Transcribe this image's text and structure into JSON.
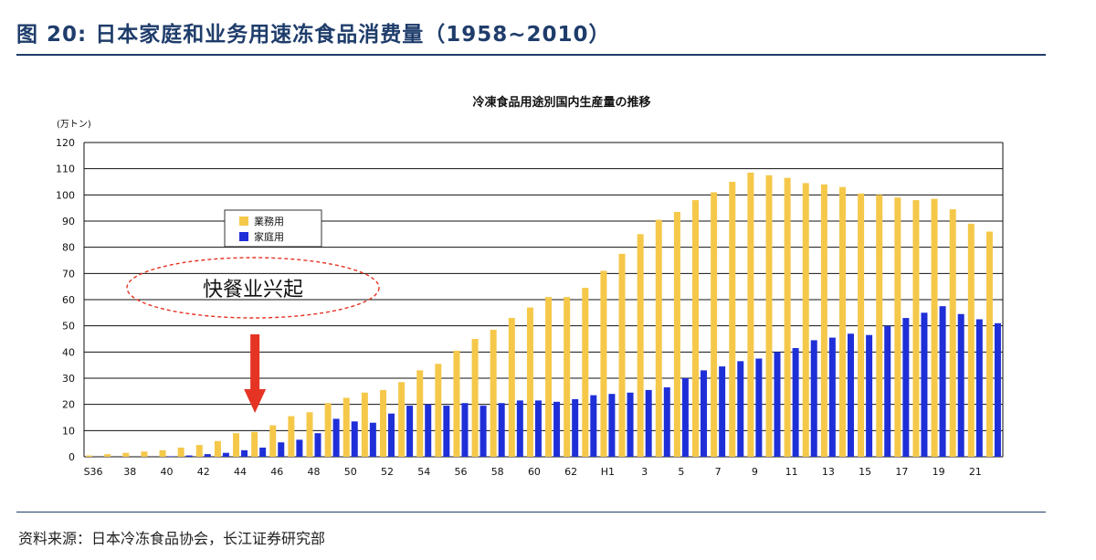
{
  "figure_title": "图 20: 日本家庭和业务用速冻食品消费量（1958~2010）",
  "source_note": "资料来源：日本冷冻食品协会，长江证券研究部",
  "annotation": {
    "text": "快餐业兴起",
    "arrow_category": "45"
  },
  "colors": {
    "business": "#f5c84a",
    "household": "#1f2fd8",
    "arrow": "#e53424",
    "ellipse": "#e53424",
    "title": "#1f3d6b"
  },
  "chart_data": {
    "type": "bar",
    "title": "冷凍食品用途別国内生産量の推移",
    "ylabel": "(万トン)",
    "ylim": [
      0,
      120
    ],
    "yticks": [
      0,
      10,
      20,
      30,
      40,
      50,
      60,
      70,
      80,
      90,
      100,
      110,
      120
    ],
    "grid": true,
    "legend_position": "upper-left",
    "categories": [
      "36",
      "37",
      "38",
      "39",
      "40",
      "41",
      "42",
      "43",
      "44",
      "45",
      "46",
      "47",
      "48",
      "49",
      "50",
      "51",
      "52",
      "53",
      "54",
      "55",
      "56",
      "57",
      "58",
      "59",
      "60",
      "61",
      "62",
      "63",
      "1",
      "2",
      "3",
      "4",
      "5",
      "6",
      "7",
      "8",
      "9",
      "10",
      "11",
      "12",
      "13",
      "14",
      "15",
      "16",
      "17",
      "18",
      "19",
      "20",
      "21",
      "22"
    ],
    "tick_labels": [
      {
        "category": "36",
        "label": "S36"
      },
      {
        "category": "38",
        "label": "38"
      },
      {
        "category": "40",
        "label": "40"
      },
      {
        "category": "42",
        "label": "42"
      },
      {
        "category": "44",
        "label": "44"
      },
      {
        "category": "46",
        "label": "46"
      },
      {
        "category": "48",
        "label": "48"
      },
      {
        "category": "50",
        "label": "50"
      },
      {
        "category": "52",
        "label": "52"
      },
      {
        "category": "54",
        "label": "54"
      },
      {
        "category": "56",
        "label": "56"
      },
      {
        "category": "58",
        "label": "58"
      },
      {
        "category": "60",
        "label": "60"
      },
      {
        "category": "62",
        "label": "62"
      },
      {
        "category": "1",
        "label": "H1"
      },
      {
        "category": "3",
        "label": "3"
      },
      {
        "category": "5",
        "label": "5"
      },
      {
        "category": "7",
        "label": "7"
      },
      {
        "category": "9",
        "label": "9"
      },
      {
        "category": "11",
        "label": "11"
      },
      {
        "category": "13",
        "label": "13"
      },
      {
        "category": "15",
        "label": "15"
      },
      {
        "category": "17",
        "label": "17"
      },
      {
        "category": "19",
        "label": "19"
      },
      {
        "category": "21",
        "label": "21"
      }
    ],
    "series": [
      {
        "name": "業務用",
        "color": "#f5c84a",
        "values": [
          0.5,
          1,
          1.5,
          2,
          2.5,
          3.5,
          4.5,
          6,
          9,
          9.5,
          12,
          15.5,
          17,
          20.5,
          22.5,
          24.5,
          25.5,
          28.5,
          33,
          35.5,
          40.5,
          45,
          48.5,
          53,
          57,
          61,
          61,
          64.5,
          71,
          77.5,
          85,
          90.5,
          93.5,
          98,
          101,
          105,
          108.5,
          107.5,
          106.5,
          104.5,
          104,
          103,
          100.5,
          100,
          99,
          98,
          98.5,
          94.5,
          89,
          86
        ]
      },
      {
        "name": "家庭用",
        "color": "#1f2fd8",
        "values": [
          0,
          0,
          0,
          0,
          0.2,
          0.5,
          1,
          1.5,
          2.5,
          3.5,
          5.5,
          6.5,
          9,
          14.5,
          13.5,
          13,
          16.5,
          19.5,
          20,
          19.5,
          20.5,
          19.5,
          20.5,
          21.5,
          21.5,
          21,
          22,
          23.5,
          24,
          24.5,
          25.5,
          26.5,
          30,
          33,
          34.5,
          36.5,
          37.5,
          40,
          41.5,
          44.5,
          45.5,
          47,
          46.5,
          50,
          53,
          55,
          57.5,
          54.5,
          52.5,
          51
        ]
      }
    ]
  }
}
